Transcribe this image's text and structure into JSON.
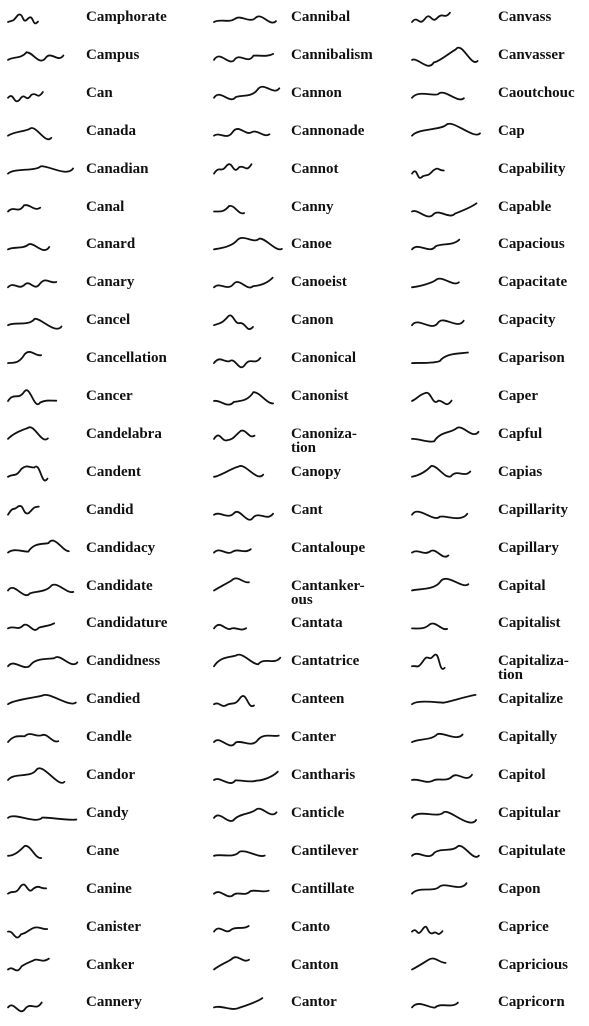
{
  "columns": [
    [
      "Camphorate",
      "Campus",
      "Can",
      "Canada",
      "Canadian",
      "Canal",
      "Canard",
      "Canary",
      "Cancel",
      "Cancellation",
      "Cancer",
      "Candelabra",
      "Candent",
      "Candid",
      "Candidacy",
      "Candidate",
      "Candidature",
      "Candidness",
      "Candied",
      "Candle",
      "Candor",
      "Candy",
      "Cane",
      "Canine",
      "Canister",
      "Canker",
      "Cannery"
    ],
    [
      "Cannibal",
      "Cannibalism",
      "Cannon",
      "Cannonade",
      "Cannot",
      "Canny",
      "Canoe",
      "Canoeist",
      "Canon",
      "Canonical",
      "Canonist",
      "Canoniza-\ntion",
      "Canopy",
      "Cant",
      "Cantaloupe",
      "Cantanker-\nous",
      "Cantata",
      "Cantatrice",
      "Canteen",
      "Canter",
      "Cantharis",
      "Canticle",
      "Cantilever",
      "Cantillate",
      "Canto",
      "Canton",
      "Cantor"
    ],
    [
      "Canvass",
      "Canvasser",
      "Caoutchouc",
      "Cap",
      "Capability",
      "Capable",
      "Capacious",
      "Capacitate",
      "Capacity",
      "Caparison",
      "Caper",
      "Capful",
      "Capias",
      "Capillarity",
      "Capillary",
      "Capital",
      "Capitalist",
      "Capitaliza-\ntion",
      "Capitalize",
      "Capitally",
      "Capitol",
      "Capitular",
      "Capitulate",
      "Capon",
      "Caprice",
      "Capricious",
      "Capricorn"
    ]
  ]
}
